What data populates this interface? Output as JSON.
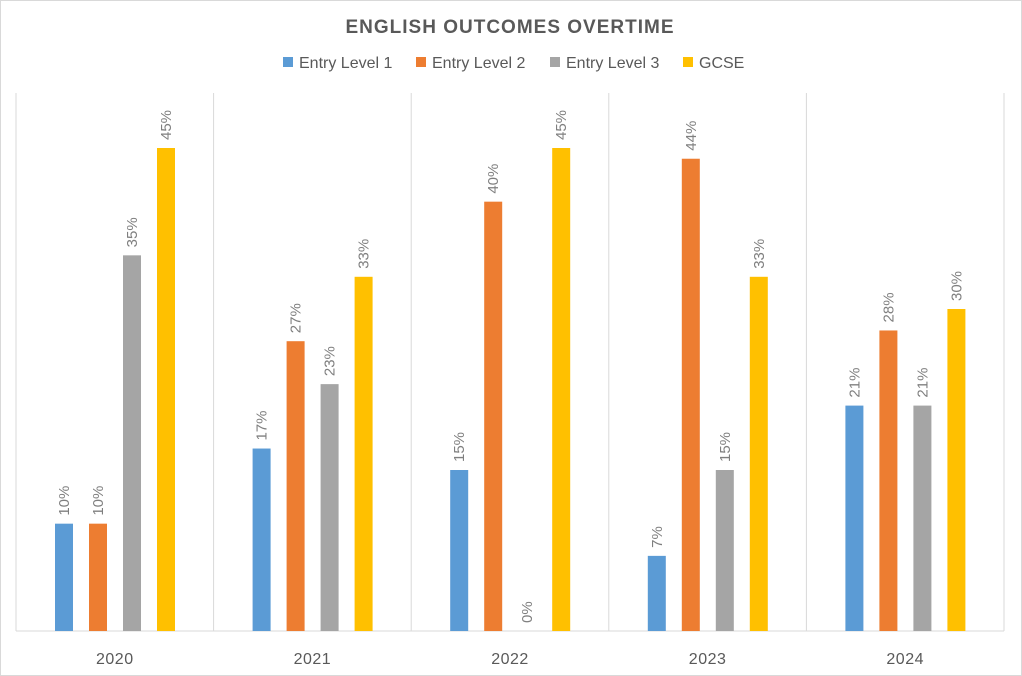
{
  "chart_data": {
    "type": "bar",
    "title": "ENGLISH OUTCOMES OVERTIME",
    "categories": [
      "2020",
      "2021",
      "2022",
      "2023",
      "2024"
    ],
    "series": [
      {
        "name": "Entry Level 1",
        "color": "#5b9bd5",
        "values": [
          10,
          17,
          15,
          7,
          21
        ],
        "labels": [
          "10%",
          "17%",
          "15%",
          "7%",
          "21%"
        ]
      },
      {
        "name": "Entry Level 2",
        "color": "#ed7d31",
        "values": [
          10,
          27,
          40,
          44,
          28
        ],
        "labels": [
          "10%",
          "27%",
          "40%",
          "44%",
          "28%"
        ]
      },
      {
        "name": "Entry Level 3",
        "color": "#a5a5a5",
        "values": [
          35,
          23,
          0,
          15,
          21
        ],
        "labels": [
          "35%",
          "23%",
          "0%",
          "15%",
          "21%"
        ]
      },
      {
        "name": "GCSE",
        "color": "#ffc000",
        "values": [
          45,
          33,
          45,
          33,
          30
        ],
        "labels": [
          "45%",
          "33%",
          "45%",
          "33%",
          "30%"
        ]
      }
    ],
    "ylim": [
      0,
      50
    ],
    "unit": "%",
    "legend": "top",
    "grid": "vertical category separators"
  }
}
